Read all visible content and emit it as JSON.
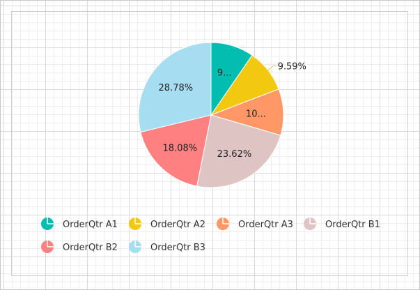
{
  "chart_data": {
    "type": "pie",
    "series": [
      {
        "name": "OrderQtr A1",
        "value": 9.6,
        "label": "9...",
        "color": "#03BDB0"
      },
      {
        "name": "OrderQtr A2",
        "value": 9.59,
        "label": "9.59%",
        "color": "#F2C811"
      },
      {
        "name": "OrderQtr A3",
        "value": 10.33,
        "label": "10...",
        "color": "#FF9767"
      },
      {
        "name": "OrderQtr B1",
        "value": 23.62,
        "label": "23.62%",
        "color": "#DFC4C4"
      },
      {
        "name": "OrderQtr B2",
        "value": 18.08,
        "label": "18.08%",
        "color": "#FF8080"
      },
      {
        "name": "OrderQtr B3",
        "value": 28.78,
        "label": "28.78%",
        "color": "#A6DDF0"
      }
    ],
    "legend_position": "bottom-left"
  }
}
